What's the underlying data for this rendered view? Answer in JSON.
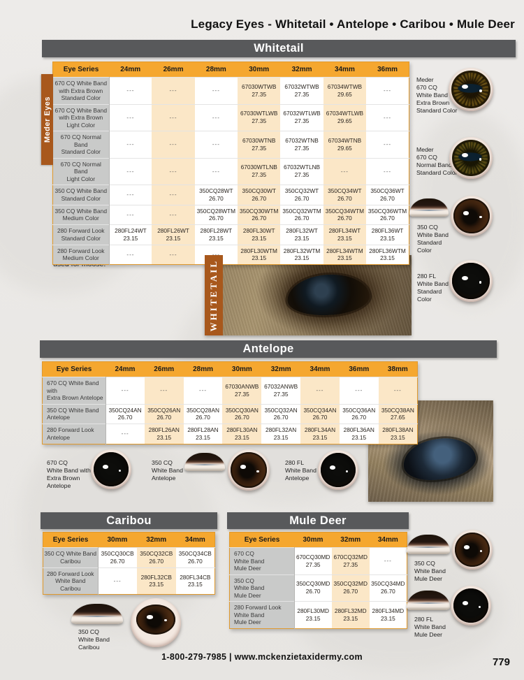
{
  "page": {
    "title": "Legacy Eyes - Whitetail • Antelope • Caribou • Mule Deer",
    "footer": "1-800-279-7985 | www.mckenzietaxidermy.com",
    "page_number": "779",
    "colors": {
      "accent_orange": "#F5A72F",
      "section_bar_gray": "#58595B",
      "band_brown": "#A8581C",
      "alt_column_peach": "#FBE7C7",
      "row_label_gray": "#C9CAC9"
    }
  },
  "whitetail": {
    "section_title": "Whitetail",
    "side_label": "Meder Eyes",
    "photo_caption": "WHITETAIL",
    "note": "Note: Standard and medium whitetail eyes can be used for moose.",
    "table": {
      "columns": [
        "Eye Series",
        "24mm",
        "26mm",
        "28mm",
        "30mm",
        "32mm",
        "34mm",
        "36mm"
      ],
      "rows": [
        {
          "label": "670 CQ White Band\nwith Extra Brown\nStandard Color",
          "cells": [
            "---",
            "---",
            "---",
            {
              "code": "67030WTWB",
              "price": "27.35"
            },
            {
              "code": "67032WTWB",
              "price": "27.35"
            },
            {
              "code": "67034WTWB",
              "price": "29.65"
            },
            "---"
          ]
        },
        {
          "label": "670 CQ  White Band\nwith Extra Brown\nLight Color",
          "cells": [
            "---",
            "---",
            "---",
            {
              "code": "67030WTLWB",
              "price": "27.35"
            },
            {
              "code": "67032WTLWB",
              "price": "27.35"
            },
            {
              "code": "67034WTLWB",
              "price": "29.65"
            },
            "---"
          ]
        },
        {
          "label": "670 CQ Normal Band\nStandard Color",
          "cells": [
            "---",
            "---",
            "---",
            {
              "code": "67030WTNB",
              "price": "27.35"
            },
            {
              "code": "67032WTNB",
              "price": "27.35"
            },
            {
              "code": "67034WTNB",
              "price": "29.65"
            },
            "---"
          ]
        },
        {
          "label": "670 CQ Normal Band\nLight Color",
          "cells": [
            "---",
            "---",
            "---",
            {
              "code": "67030WTLNB",
              "price": "27.35"
            },
            {
              "code": "67032WTLNB",
              "price": "27.35"
            },
            "---",
            "---"
          ]
        },
        {
          "label": "350 CQ White Band\nStandard Color",
          "cells": [
            "---",
            "---",
            {
              "code": "350CQ28WT",
              "price": "26.70"
            },
            {
              "code": "350CQ30WT",
              "price": "26.70"
            },
            {
              "code": "350CQ32WT",
              "price": "26.70"
            },
            {
              "code": "350CQ34WT",
              "price": "26.70"
            },
            {
              "code": "350CQ36WT",
              "price": "26.70"
            }
          ]
        },
        {
          "label": "350 CQ White Band\nMedium Color",
          "cells": [
            "---",
            "---",
            {
              "code": "350CQ28WTM",
              "price": "26.70"
            },
            {
              "code": "350CQ30WTM",
              "price": "26.70"
            },
            {
              "code": "350CQ32WTM",
              "price": "26.70"
            },
            {
              "code": "350CQ34WTM",
              "price": "26.70"
            },
            {
              "code": "350CQ36WTM",
              "price": "26.70"
            }
          ]
        },
        {
          "label": "280 Forward Look\nStandard Color",
          "cells": [
            {
              "code": "280FL24WT",
              "price": "23.15"
            },
            {
              "code": "280FL26WT",
              "price": "23.15"
            },
            {
              "code": "280FL28WT",
              "price": "23.15"
            },
            {
              "code": "280FL30WT",
              "price": "23.15"
            },
            {
              "code": "280FL32WT",
              "price": "23.15"
            },
            {
              "code": "280FL34WT",
              "price": "23.15"
            },
            {
              "code": "280FL36WT",
              "price": "23.15"
            }
          ]
        },
        {
          "label": "280 Forward Look\nMedium Color",
          "cells": [
            "---",
            "---",
            "---",
            {
              "code": "280FL30WTM",
              "price": "23.15"
            },
            {
              "code": "280FL32WTM",
              "price": "23.15"
            },
            {
              "code": "280FL34WTM",
              "price": "23.15"
            },
            {
              "code": "280FL36WTM",
              "price": "23.15"
            }
          ]
        }
      ]
    },
    "legend": [
      "Meder\n670 CQ\nWhite Band\nExtra Brown\nStandard Color",
      "Meder\n670 CQ\nNormal Band\nStandard Color",
      "350 CQ\nWhite Band\nStandard\nColor",
      "280 FL\nWhite Band\nStandard\nColor"
    ]
  },
  "antelope": {
    "section_title": "Antelope",
    "table": {
      "columns": [
        "Eye Series",
        "24mm",
        "26mm",
        "28mm",
        "30mm",
        "32mm",
        "34mm",
        "36mm",
        "38mm"
      ],
      "rows": [
        {
          "label": "670 CQ White Band with\nExtra Brown Antelope",
          "cells": [
            "---",
            "---",
            "---",
            {
              "code": "67030ANWB",
              "price": "27.35"
            },
            {
              "code": "67032ANWB",
              "price": "27.35"
            },
            "---",
            "---",
            "---"
          ]
        },
        {
          "label": "350 CQ White Band\nAntelope",
          "cells": [
            {
              "code": "350CQ24AN",
              "price": "26.70"
            },
            {
              "code": "350CQ26AN",
              "price": "26.70"
            },
            {
              "code": "350CQ28AN",
              "price": "26.70"
            },
            {
              "code": "350CQ30AN",
              "price": "26.70"
            },
            {
              "code": "350CQ32AN",
              "price": "26.70"
            },
            {
              "code": "350CQ34AN",
              "price": "26.70"
            },
            {
              "code": "350CQ36AN",
              "price": "26.70"
            },
            {
              "code": "350CQ38AN",
              "price": "27.65"
            }
          ]
        },
        {
          "label": "280 Forward Look\nAntelope",
          "cells": [
            "---",
            {
              "code": "280FL26AN",
              "price": "23.15"
            },
            {
              "code": "280FL28AN",
              "price": "23.15"
            },
            {
              "code": "280FL30AN",
              "price": "23.15"
            },
            {
              "code": "280FL32AN",
              "price": "23.15"
            },
            {
              "code": "280FL34AN",
              "price": "23.15"
            },
            {
              "code": "280FL36AN",
              "price": "23.15"
            },
            {
              "code": "280FL38AN",
              "price": "23.15"
            }
          ]
        }
      ]
    },
    "legend": [
      "670 CQ\nWhite Band with\nExtra Brown\nAntelope",
      "350 CQ\nWhite Band\nAntelope",
      "280 FL\nWhite Band\nAntelope"
    ]
  },
  "caribou": {
    "section_title": "Caribou",
    "table": {
      "columns": [
        "Eye Series",
        "30mm",
        "32mm",
        "34mm"
      ],
      "rows": [
        {
          "label": "350 CQ White Band\nCaribou",
          "cells": [
            {
              "code": "350CQ30CB",
              "price": "26.70"
            },
            {
              "code": "350CQ32CB",
              "price": "26.70"
            },
            {
              "code": "350CQ34CB",
              "price": "26.70"
            }
          ]
        },
        {
          "label": "280 Forward Look\nWhite Band\nCaribou",
          "cells": [
            "---",
            {
              "code": "280FL32CB",
              "price": "23.15"
            },
            {
              "code": "280FL34CB",
              "price": "23.15"
            }
          ]
        }
      ]
    },
    "legend": [
      "350 CQ\nWhite Band\nCaribou"
    ]
  },
  "mule_deer": {
    "section_title": "Mule Deer",
    "table": {
      "columns": [
        "Eye Series",
        "30mm",
        "32mm",
        "34mm"
      ],
      "rows": [
        {
          "label": "670 CQ\nWhite Band\nMule Deer",
          "cells": [
            {
              "code": "670CQ30MD",
              "price": "27.35"
            },
            {
              "code": "670CQ32MD",
              "price": "27.35"
            },
            "---"
          ]
        },
        {
          "label": "350 CQ\nWhite Band\nMule Deer",
          "cells": [
            {
              "code": "350CQ30MD",
              "price": "26.70"
            },
            {
              "code": "350CQ32MD",
              "price": "26.70"
            },
            {
              "code": "350CQ34MD",
              "price": "26.70"
            }
          ]
        },
        {
          "label": "280 Forward Look\nWhite Band\nMule Deer",
          "cells": [
            {
              "code": "280FL30MD",
              "price": "23.15"
            },
            {
              "code": "280FL32MD",
              "price": "23.15"
            },
            {
              "code": "280FL34MD",
              "price": "23.15"
            }
          ]
        }
      ]
    },
    "legend": [
      "350 CQ\nWhite Band\nMule Deer",
      "280 FL\nWhite Band\nMule Deer"
    ]
  }
}
